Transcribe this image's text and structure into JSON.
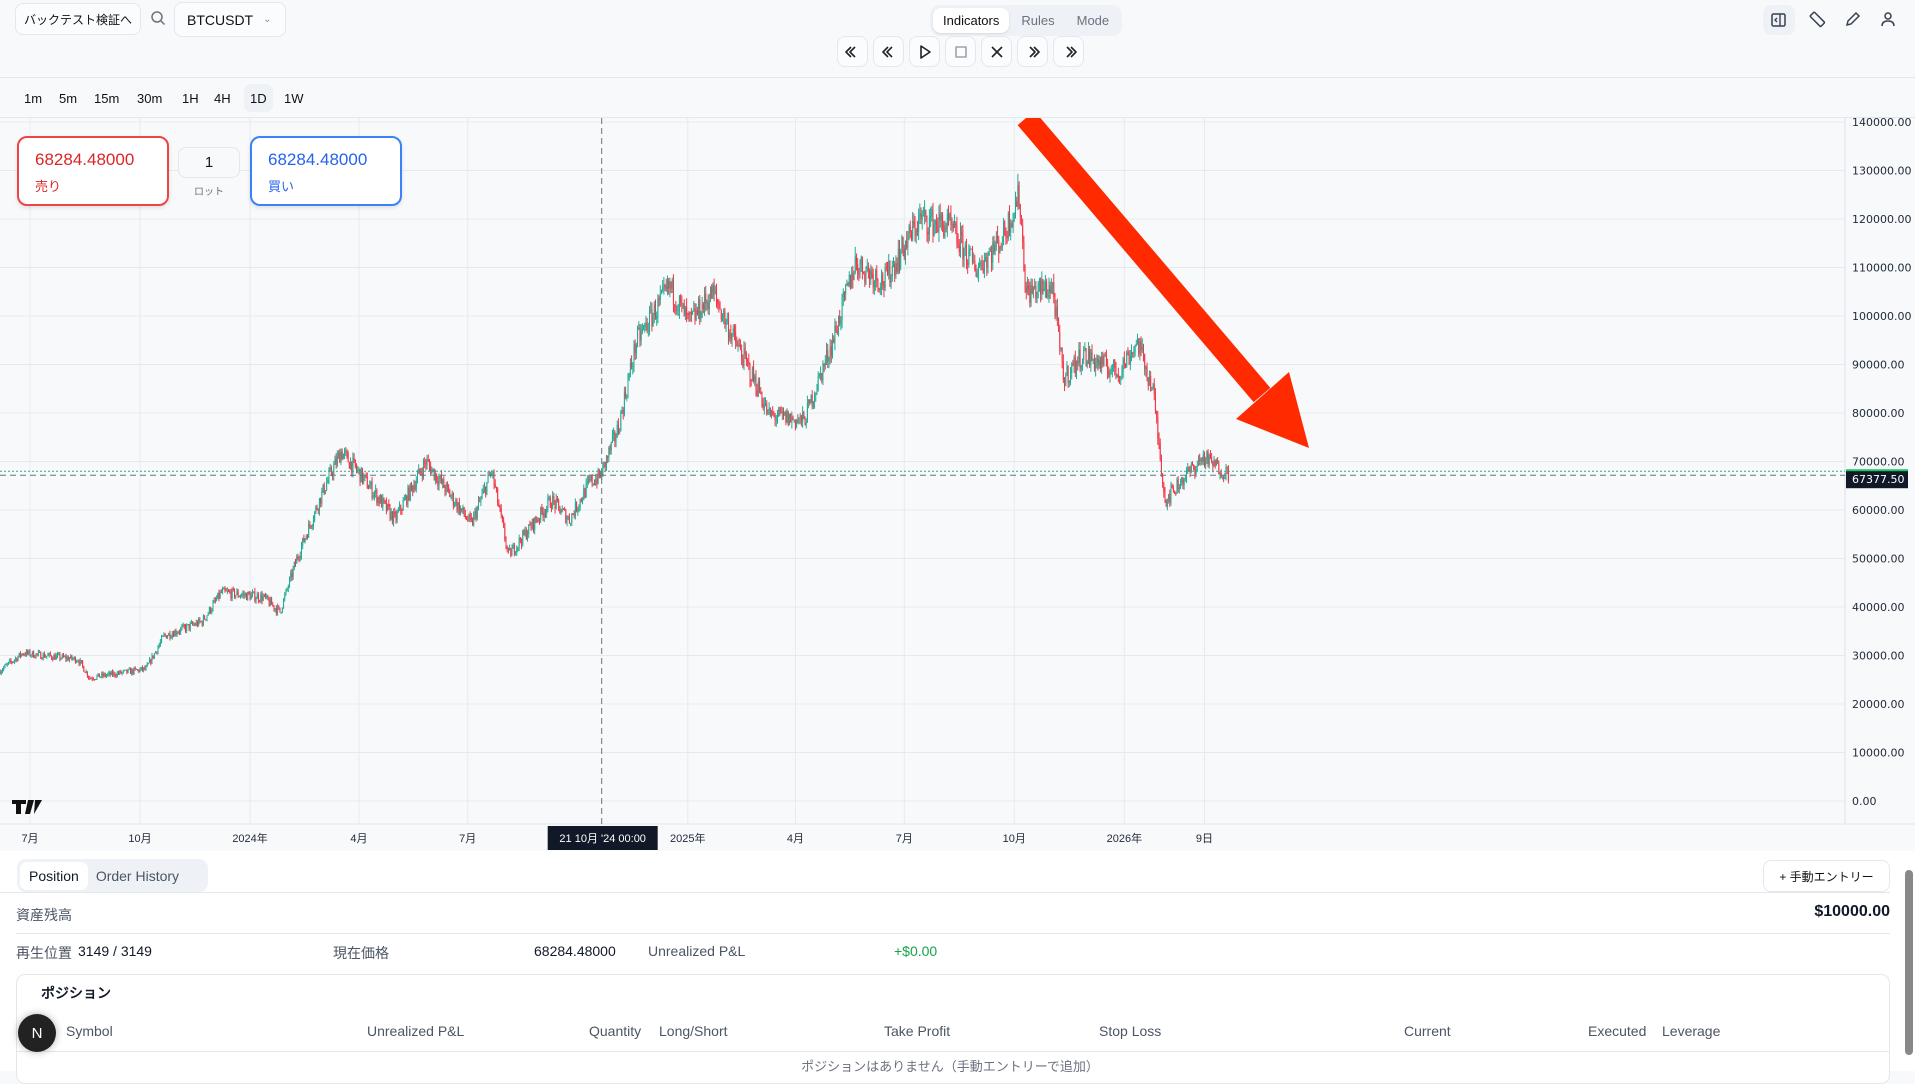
{
  "header": {
    "backtest_button": "バックテスト検証へ",
    "symbol": "BTCUSDT",
    "tabs": [
      {
        "label": "Indicators",
        "active": true
      },
      {
        "label": "Rules",
        "active": false
      },
      {
        "label": "Mode",
        "active": false
      }
    ],
    "playback": [
      "jump-start-icon",
      "step-back-icon",
      "play-icon",
      "stop-icon",
      "scissors-icon",
      "step-forward-icon",
      "jump-end-icon"
    ],
    "right_icons": [
      "panel-toggle-icon",
      "ruler-icon",
      "pencil-icon",
      "user-icon"
    ]
  },
  "timeframes": [
    {
      "label": "1m"
    },
    {
      "label": "5m"
    },
    {
      "label": "15m"
    },
    {
      "label": "30m"
    },
    {
      "label": "1H"
    },
    {
      "label": "4H"
    },
    {
      "label": "1D",
      "active": true
    },
    {
      "label": "1W"
    }
  ],
  "order": {
    "sell_price": "68284.48000",
    "sell_label": "売り",
    "lot": "1",
    "lot_label": "ロット",
    "buy_price": "68284.48000",
    "buy_label": "買い"
  },
  "colors": {
    "up": "#22ab94",
    "down": "#f23645",
    "arrow": "#ff2a00",
    "sell": "#ef4444",
    "buy": "#3b82f6"
  },
  "chart_data": {
    "type": "candlestick",
    "symbol": "BTCUSDT",
    "interval": "1D",
    "ylim": [
      0,
      140000
    ],
    "y_ticks": [
      "140000.00",
      "130000.00",
      "120000.00",
      "110000.00",
      "100000.00",
      "90000.00",
      "80000.00",
      "70000.00",
      "60000.00",
      "50000.00",
      "40000.00",
      "30000.00",
      "20000.00",
      "10000.00",
      "0.00"
    ],
    "x_ticks": [
      {
        "label": "7月",
        "date": "2023-07-01"
      },
      {
        "label": "10月",
        "date": "2023-10-01"
      },
      {
        "label": "2024年",
        "date": "2024-01-01"
      },
      {
        "label": "4月",
        "date": "2024-04-01"
      },
      {
        "label": "7月",
        "date": "2024-07-01"
      },
      {
        "label": "2025年",
        "date": "2025-01-01"
      },
      {
        "label": "4月",
        "date": "2025-04-01"
      },
      {
        "label": "7月",
        "date": "2025-07-01"
      },
      {
        "label": "10月",
        "date": "2025-10-01"
      },
      {
        "label": "2026年",
        "date": "2026-01-01"
      },
      {
        "label": "9日",
        "date": "2026-03-09"
      }
    ],
    "crosshair_label": "21 10月 '24  00:00",
    "crosshair_date": "2024-10-21",
    "last_price_label": "67377.50",
    "last_price": 67377.5,
    "approx_closes": [
      [
        "2023-06-06",
        26700
      ],
      [
        "2023-06-26",
        30500
      ],
      [
        "2023-08-11",
        29200
      ],
      [
        "2023-08-21",
        25400
      ],
      [
        "2023-10-07",
        27200
      ],
      [
        "2023-10-22",
        34000
      ],
      [
        "2023-11-23",
        37000
      ],
      [
        "2023-12-09",
        43000
      ],
      [
        "2024-01-13",
        42000
      ],
      [
        "2024-01-27",
        39000
      ],
      [
        "2024-02-11",
        50600
      ],
      [
        "2024-03-04",
        64500
      ],
      [
        "2024-03-18",
        72000
      ],
      [
        "2024-04-01",
        68000
      ],
      [
        "2024-05-02",
        58000
      ],
      [
        "2024-05-28",
        70000
      ],
      [
        "2024-07-05",
        57000
      ],
      [
        "2024-07-22",
        68000
      ],
      [
        "2024-08-05",
        50600
      ],
      [
        "2024-09-10",
        62000
      ],
      [
        "2024-09-25",
        58000
      ],
      [
        "2024-10-12",
        65700
      ],
      [
        "2024-10-21",
        67000
      ],
      [
        "2024-11-05",
        77000
      ],
      [
        "2024-11-20",
        94700
      ],
      [
        "2024-12-18",
        106000
      ],
      [
        "2025-01-03",
        98500
      ],
      [
        "2025-01-23",
        104800
      ],
      [
        "2025-02-08",
        96000
      ],
      [
        "2025-03-03",
        84600
      ],
      [
        "2025-03-10",
        79600
      ],
      [
        "2025-04-09",
        78300
      ],
      [
        "2025-05-03",
        94700
      ],
      [
        "2025-05-22",
        111000
      ],
      [
        "2025-06-15",
        107000
      ],
      [
        "2025-07-15",
        120000
      ],
      [
        "2025-08-08",
        118600
      ],
      [
        "2025-08-31",
        109800
      ],
      [
        "2025-09-22",
        116000
      ],
      [
        "2025-10-06",
        125000
      ],
      [
        "2025-10-12",
        104800
      ],
      [
        "2025-11-03",
        106000
      ],
      [
        "2025-11-12",
        87000
      ],
      [
        "2025-11-28",
        92000
      ],
      [
        "2025-12-28",
        88400
      ],
      [
        "2026-01-13",
        94700
      ],
      [
        "2026-01-26",
        84600
      ],
      [
        "2026-02-05",
        62000
      ],
      [
        "2026-02-22",
        67000
      ],
      [
        "2026-03-09",
        70800
      ],
      [
        "2026-03-30",
        67400
      ]
    ]
  },
  "bottom": {
    "tabs": [
      {
        "label": "Position",
        "active": true
      },
      {
        "label": "Order History"
      }
    ],
    "manual_entry": "+ 手動エントリー",
    "balance_label": "資産残高",
    "balance_value": "$10000.00",
    "playback_label": "再生位置",
    "playback_value": "3149 / 3149",
    "current_price_label": "現在価格",
    "current_price_value": "68284.48000",
    "pnl_label": "Unrealized P&L",
    "pnl_value": "+$0.00",
    "positions_title": "ポジション",
    "columns": [
      "Symbol",
      "Unrealized P&L",
      "Quantity",
      "Long/Short",
      "Take Profit",
      "Stop Loss",
      "Current",
      "Executed",
      "Leverage"
    ],
    "empty_text": "ポジションはありません（手動エントリーで追加）",
    "avatar_letter": "N"
  }
}
